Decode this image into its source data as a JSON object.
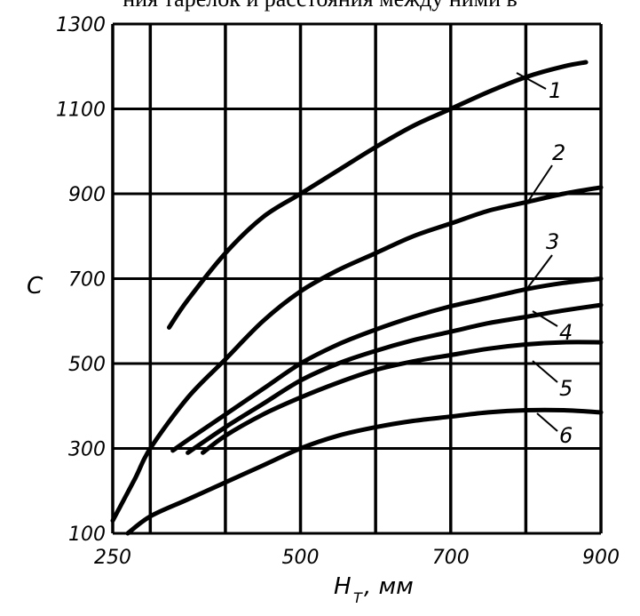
{
  "header_text": "ния тарелок и расстояния между ними в",
  "chart_data": {
    "type": "line",
    "xlabel": "H_T, мм",
    "ylabel": "C",
    "xlim": [
      250,
      900
    ],
    "ylim": [
      100,
      1300
    ],
    "x_ticks": [
      {
        "value": 250,
        "label": "250"
      },
      {
        "value": 500,
        "label": "500"
      },
      {
        "value": 700,
        "label": "700"
      },
      {
        "value": 900,
        "label": "900"
      }
    ],
    "y_ticks": [
      {
        "value": 100,
        "label": "100"
      },
      {
        "value": 300,
        "label": "300"
      },
      {
        "value": 500,
        "label": "500"
      },
      {
        "value": 700,
        "label": "700"
      },
      {
        "value": 900,
        "label": "900"
      },
      {
        "value": 1100,
        "label": "1100"
      },
      {
        "value": 1300,
        "label": "1300"
      }
    ],
    "x_gridlines": [
      250,
      300,
      400,
      500,
      600,
      700,
      800,
      900
    ],
    "y_gridlines": [
      100,
      300,
      500,
      700,
      900,
      1100,
      1300
    ],
    "grid": true,
    "series": [
      {
        "label": "1",
        "points": [
          [
            325,
            585
          ],
          [
            350,
            650
          ],
          [
            400,
            760
          ],
          [
            450,
            845
          ],
          [
            500,
            900
          ],
          [
            550,
            955
          ],
          [
            600,
            1010
          ],
          [
            650,
            1060
          ],
          [
            700,
            1100
          ],
          [
            750,
            1140
          ],
          [
            800,
            1175
          ],
          [
            850,
            1200
          ],
          [
            880,
            1210
          ]
        ]
      },
      {
        "label": "2",
        "points": [
          [
            250,
            130
          ],
          [
            280,
            230
          ],
          [
            300,
            300
          ],
          [
            350,
            420
          ],
          [
            400,
            510
          ],
          [
            450,
            600
          ],
          [
            500,
            670
          ],
          [
            550,
            720
          ],
          [
            600,
            760
          ],
          [
            650,
            800
          ],
          [
            700,
            830
          ],
          [
            750,
            860
          ],
          [
            800,
            880
          ],
          [
            850,
            900
          ],
          [
            900,
            915
          ]
        ]
      },
      {
        "label": "3",
        "points": [
          [
            330,
            295
          ],
          [
            350,
            320
          ],
          [
            400,
            380
          ],
          [
            450,
            440
          ],
          [
            500,
            500
          ],
          [
            550,
            545
          ],
          [
            600,
            580
          ],
          [
            650,
            610
          ],
          [
            700,
            635
          ],
          [
            750,
            655
          ],
          [
            800,
            675
          ],
          [
            850,
            690
          ],
          [
            900,
            700
          ]
        ]
      },
      {
        "label": "4",
        "points": [
          [
            350,
            290
          ],
          [
            400,
            350
          ],
          [
            450,
            405
          ],
          [
            500,
            460
          ],
          [
            550,
            500
          ],
          [
            600,
            530
          ],
          [
            650,
            555
          ],
          [
            700,
            575
          ],
          [
            750,
            595
          ],
          [
            800,
            610
          ],
          [
            850,
            625
          ],
          [
            900,
            638
          ]
        ]
      },
      {
        "label": "5",
        "points": [
          [
            370,
            290
          ],
          [
            400,
            330
          ],
          [
            450,
            380
          ],
          [
            500,
            420
          ],
          [
            550,
            455
          ],
          [
            600,
            485
          ],
          [
            650,
            505
          ],
          [
            700,
            520
          ],
          [
            750,
            535
          ],
          [
            800,
            545
          ],
          [
            850,
            550
          ],
          [
            900,
            550
          ]
        ]
      },
      {
        "label": "6",
        "points": [
          [
            270,
            100
          ],
          [
            300,
            140
          ],
          [
            350,
            180
          ],
          [
            400,
            220
          ],
          [
            450,
            260
          ],
          [
            500,
            300
          ],
          [
            550,
            330
          ],
          [
            600,
            350
          ],
          [
            650,
            365
          ],
          [
            700,
            375
          ],
          [
            750,
            385
          ],
          [
            800,
            390
          ],
          [
            850,
            390
          ],
          [
            900,
            385
          ]
        ]
      }
    ]
  }
}
